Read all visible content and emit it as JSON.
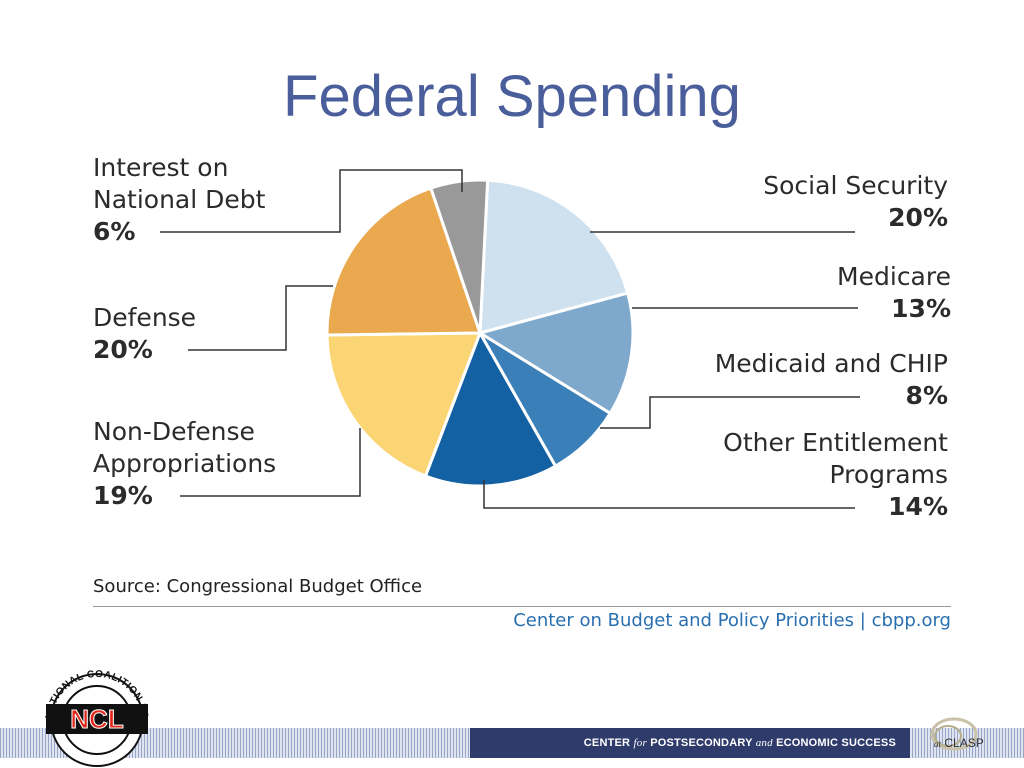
{
  "slide": {
    "title": "Federal Spending",
    "source": "Source:  Congressional Budget Office",
    "credit": "Center on Budget and Policy Priorities | cbpp.org"
  },
  "chart_data": {
    "type": "pie",
    "title": "Federal Spending",
    "slices": [
      {
        "name": "Social Security",
        "label": "Social Security",
        "value": 20,
        "pct_label": "20%",
        "color": "#cfe0ee"
      },
      {
        "name": "Medicare",
        "label": "Medicare",
        "value": 13,
        "pct_label": "13%",
        "color": "#7ea9cd"
      },
      {
        "name": "Medicaid and CHIP",
        "label": "Medicaid and CHIP",
        "value": 8,
        "pct_label": "8%",
        "color": "#3b7fb8"
      },
      {
        "name": "Other Entitlement Programs",
        "label": "Other Entitlement\nPrograms",
        "value": 14,
        "pct_label": "14%",
        "color": "#1361a2"
      },
      {
        "name": "Non-Defense Appropriations",
        "label": "Non-Defense\nAppropriations",
        "value": 19,
        "pct_label": "19%",
        "color": "#fbd574"
      },
      {
        "name": "Defense",
        "label": "Defense",
        "value": 20,
        "pct_label": "20%",
        "color": "#eaa94e"
      },
      {
        "name": "Interest on National Debt",
        "label": "Interest on\nNational Debt",
        "value": 6,
        "pct_label": "6%",
        "color": "#999999"
      }
    ]
  },
  "footer": {
    "center_prefix": "CENTER",
    "center_for": "for",
    "center_mid": "POSTSECONDARY",
    "center_and": "and",
    "center_suffix": "ECONOMIC SUCCESS",
    "clasp_prefix": "at",
    "clasp_name": "CLASP",
    "ncl_arc_text": "NATIONAL COALITION FOR LITERACY",
    "ncl_letters": "NCL"
  },
  "colors": {
    "title": "#4a5e9c",
    "credit": "#2a6fb0",
    "leader": "#333333",
    "footer_dark": "#2e3b6b",
    "ncl_red": "#e0281d"
  }
}
